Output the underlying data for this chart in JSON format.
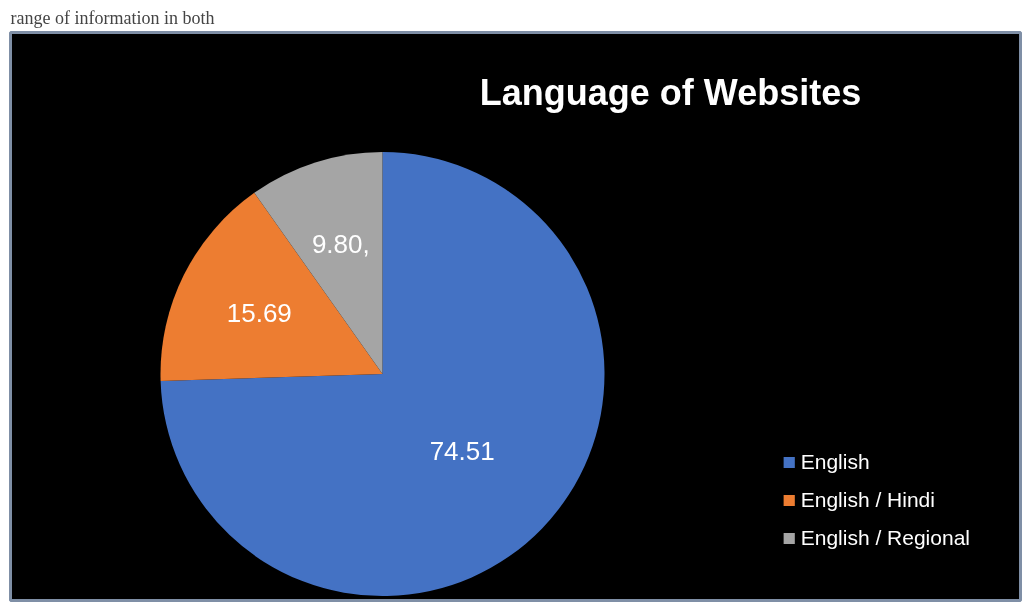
{
  "chart_data": {
    "type": "pie",
    "title": "Language of Websites",
    "categories": [
      "English",
      "English / Hindi",
      "English / Regional"
    ],
    "values": [
      74.51,
      15.69,
      9.8
    ],
    "value_labels": [
      "74.51",
      "15.69",
      "9.80,"
    ],
    "colors": [
      "#4472c4",
      "#ed7d31",
      "#a5a5a5"
    ],
    "legend": "bottom right",
    "annotations": [
      "range of information in both"
    ]
  }
}
